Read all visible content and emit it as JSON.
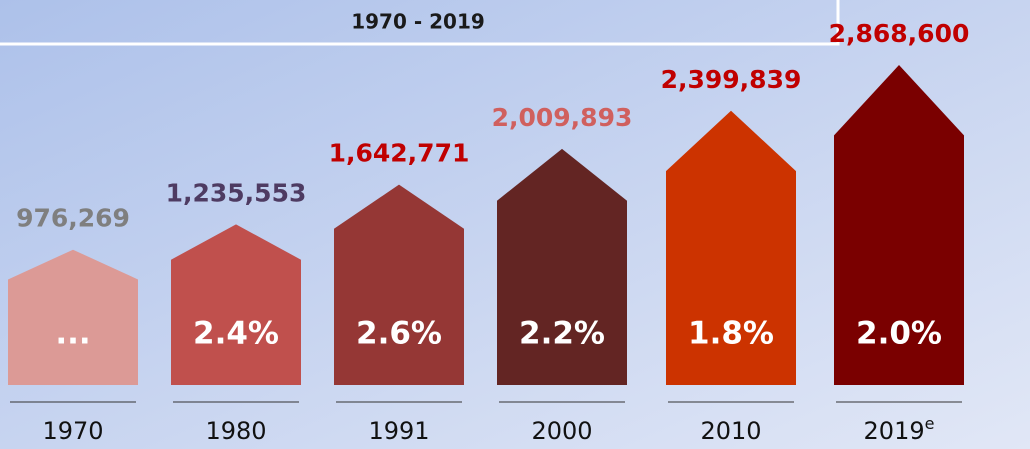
{
  "chart_data": {
    "type": "bar",
    "title": "1970 - 2019",
    "categories": [
      "1970",
      "1980",
      "1991",
      "2000",
      "2010",
      "2019"
    ],
    "superscripts": [
      null,
      null,
      null,
      null,
      null,
      "e"
    ],
    "values": [
      976269,
      1235553,
      1642771,
      2009893,
      2399839,
      2868600
    ],
    "value_labels": [
      "976,269",
      "1,235,553",
      "1,642,771",
      "2,009,893",
      "2,399,839",
      "2,868,600"
    ],
    "growth": [
      null,
      2.4,
      2.6,
      2.2,
      1.8,
      2.0
    ],
    "growth_labels": [
      "...",
      "2.4%",
      "2.6%",
      "2.2%",
      "1.8%",
      "2.0%"
    ],
    "colors": [
      "#dc9a96",
      "#c0504d",
      "#953735",
      "#632523",
      "#cc3300",
      "#7a0000"
    ],
    "label_colors": [
      "#7f7f7f",
      "#4e3b62",
      "#c00000",
      "#d0605e",
      "#c00000",
      "#c00000"
    ]
  }
}
